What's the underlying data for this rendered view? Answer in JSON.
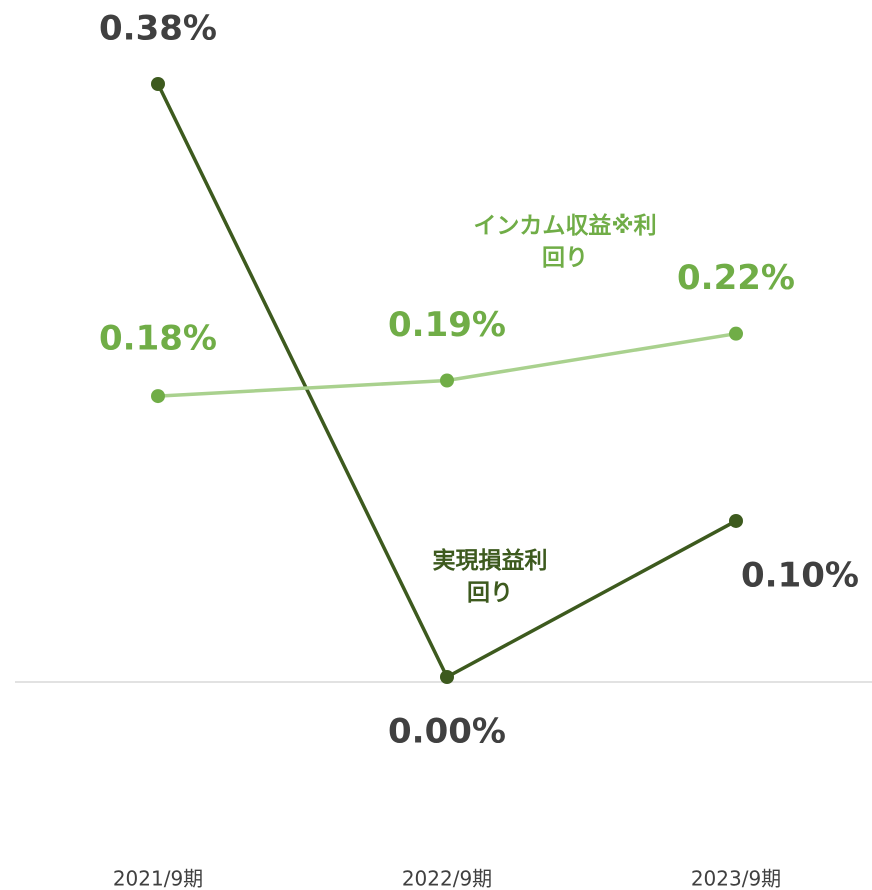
{
  "chart_data": {
    "type": "line",
    "categories": [
      "2021/9期",
      "2022/9期",
      "2023/9期"
    ],
    "series": [
      {
        "name": "実現損益利回り",
        "color": "#3d5a1e",
        "label_color": "#404040",
        "values": [
          0.38,
          0,
          0.1
        ],
        "value_labels": [
          "0.38%",
          "0.00%",
          "0.10%"
        ]
      },
      {
        "name": "インカム収益※利回り",
        "color": "#70ad47",
        "line_color": "#a9d18e",
        "label_color": "#70ad47",
        "values": [
          0.18,
          0.19,
          0.22
        ],
        "value_labels": [
          "0.18%",
          "0.19%",
          "0.22%"
        ]
      }
    ],
    "ylim": [
      0,
      0.38
    ]
  }
}
